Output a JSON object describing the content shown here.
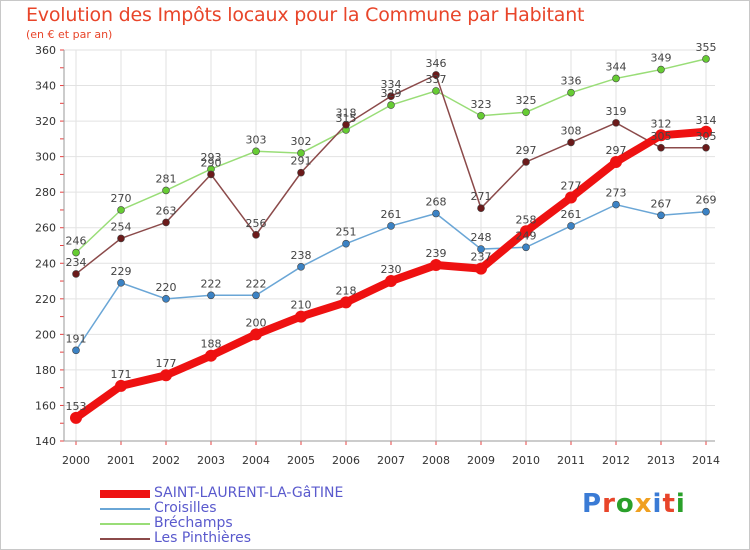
{
  "title": "Evolution des Impôts locaux pour la Commune par Habitant",
  "subtitle": "(en € et par an)",
  "logo": {
    "text": "Proxiti",
    "letters": [
      "P",
      "r",
      "o",
      "x",
      "i",
      "t",
      "i"
    ],
    "colors": [
      "#3a7bd5",
      "#e8452a",
      "#2aa02a",
      "#f0a020",
      "#3a7bd5",
      "#e8452a",
      "#2aa02a"
    ]
  },
  "chart_data": {
    "type": "line",
    "title": "Evolution des Impôts locaux pour la Commune par Habitant",
    "xlabel": "",
    "ylabel": "(en € et par an)",
    "ylim": [
      140,
      360
    ],
    "yticks": [
      140,
      160,
      180,
      200,
      220,
      240,
      260,
      280,
      300,
      320,
      340,
      360
    ],
    "grid": true,
    "categories": [
      "2000",
      "2001",
      "2002",
      "2003",
      "2004",
      "2005",
      "2006",
      "2007",
      "2008",
      "2009",
      "2010",
      "2011",
      "2012",
      "2013",
      "2014"
    ],
    "series": [
      {
        "name": "SAINT-LAURENT-LA-GâTINE",
        "color": "#ee1111",
        "marker": "#ee1111",
        "thick": true,
        "values": [
          153,
          171,
          177,
          188,
          200,
          210,
          218,
          230,
          239,
          237,
          258,
          277,
          297,
          312,
          314
        ]
      },
      {
        "name": "Croisilles",
        "color": "#6aa6d6",
        "marker": "#3b82c4",
        "thick": false,
        "values": [
          191,
          229,
          220,
          222,
          222,
          238,
          251,
          261,
          268,
          248,
          249,
          261,
          273,
          267,
          269
        ]
      },
      {
        "name": "Bréchamps",
        "color": "#99dd77",
        "marker": "#66cc33",
        "thick": false,
        "values": [
          246,
          270,
          281,
          293,
          303,
          302,
          315,
          329,
          337,
          323,
          325,
          336,
          344,
          349,
          355
        ]
      },
      {
        "name": "Les Pinthières",
        "color": "#8b4a4a",
        "marker": "#6b1a1a",
        "thick": false,
        "values": [
          234,
          254,
          263,
          290,
          256,
          291,
          318,
          334,
          346,
          271,
          297,
          308,
          319,
          305,
          305
        ]
      }
    ]
  }
}
